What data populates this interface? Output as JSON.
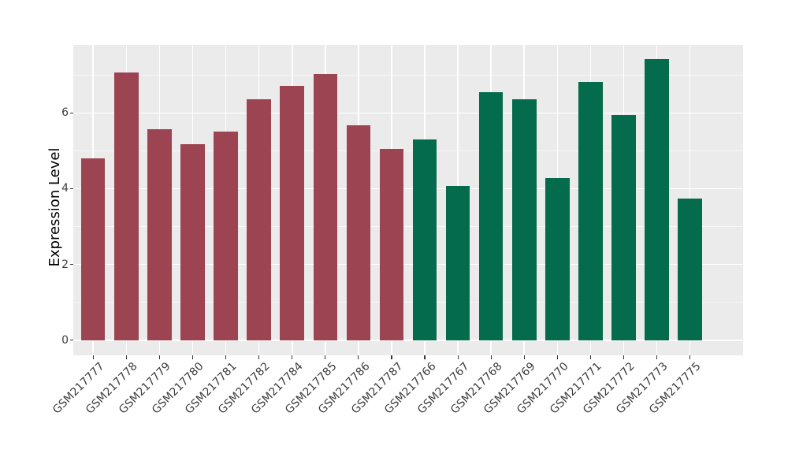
{
  "chart_data": {
    "type": "bar",
    "title": "",
    "xlabel": "",
    "ylabel": "Expression Level",
    "categories": [
      "GSM217777",
      "GSM217778",
      "GSM217779",
      "GSM217780",
      "GSM217781",
      "GSM217782",
      "GSM217784",
      "GSM217785",
      "GSM217786",
      "GSM217787",
      "GSM217766",
      "GSM217767",
      "GSM217768",
      "GSM217769",
      "GSM217770",
      "GSM217771",
      "GSM217772",
      "GSM217773",
      "GSM217775"
    ],
    "values": [
      4.79,
      7.06,
      5.57,
      5.17,
      5.51,
      6.35,
      6.72,
      7.03,
      5.67,
      5.05,
      5.29,
      4.08,
      6.55,
      6.37,
      4.27,
      6.82,
      5.95,
      7.42,
      3.73
    ],
    "bar_groups": [
      "maroon",
      "maroon",
      "maroon",
      "maroon",
      "maroon",
      "maroon",
      "maroon",
      "maroon",
      "maroon",
      "maroon",
      "green",
      "green",
      "green",
      "green",
      "green",
      "green",
      "green",
      "green",
      "green"
    ],
    "group_colors": {
      "maroon": "#9C4452",
      "green": "#046B4C"
    },
    "yticks": [
      0,
      2,
      4,
      6
    ],
    "minor_gridlines": [
      1,
      3,
      5,
      7
    ],
    "ylim": [
      0,
      7.8
    ],
    "x_tick_angle_deg": 45,
    "grid": true,
    "legend": "none",
    "panel_background": "#EBEBEB",
    "gridline_color": "#FFFFFF",
    "axis_text_color": "#3d3d3d",
    "axis_title_color": "#000000"
  }
}
